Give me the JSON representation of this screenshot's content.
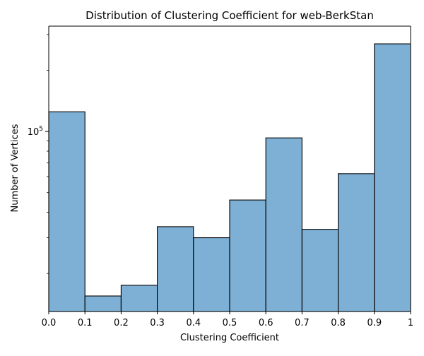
{
  "chart_data": {
    "type": "bar",
    "title": "Distribution of Clustering Coefficient for web-BerkStan",
    "xlabel": "Clustering Coefficient",
    "ylabel": "Number of Vertices",
    "x_tick_labels": [
      "0.0",
      "0.1",
      "0.2",
      "0.3",
      "0.4",
      "0.5",
      "0.6",
      "0.7",
      "0.8",
      "0.9",
      "1"
    ],
    "y_tick_label": {
      "base": "10",
      "exponent": "5"
    },
    "y_scale": "log",
    "xlim": [
      0,
      1
    ],
    "ylim": [
      13000,
      330000
    ],
    "bin_edges": [
      0,
      0.1,
      0.2,
      0.3,
      0.4,
      0.5,
      0.6,
      0.7,
      0.8,
      0.9,
      1.0
    ],
    "values": [
      125000,
      15500,
      17500,
      34000,
      30000,
      46000,
      93000,
      33000,
      62000,
      270000
    ],
    "bar_color": "#7eb0d5",
    "edge_color": "#000000",
    "grid": false
  }
}
